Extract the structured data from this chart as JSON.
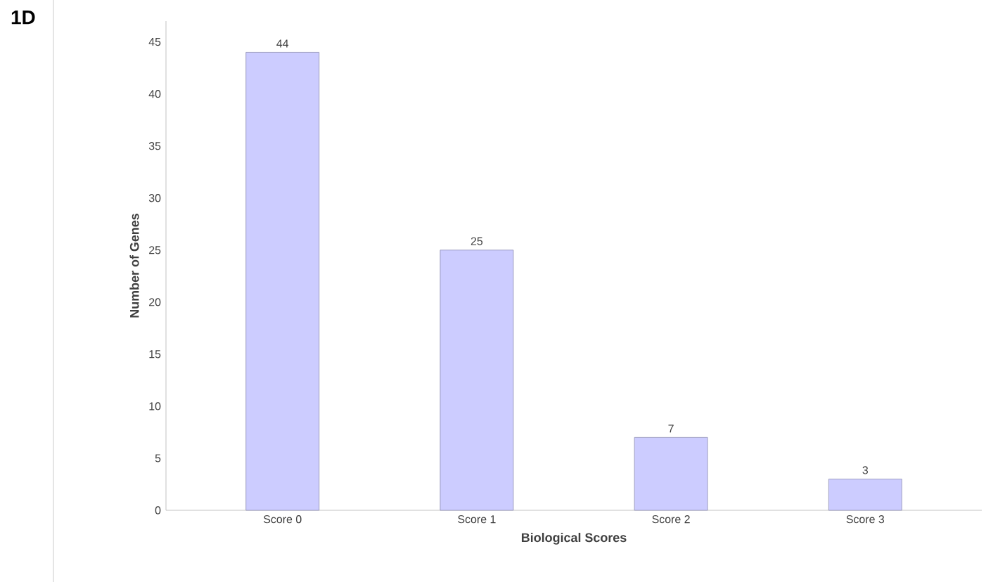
{
  "chart_data": {
    "type": "bar",
    "xlabel": "Biological Scores",
    "ylabel": "Number of Genes",
    "categories": [
      "Score 0",
      "Score 1",
      "Score 2",
      "Score 3"
    ],
    "values": [
      44,
      25,
      7,
      3
    ],
    "color": "#ccccff",
    "ylim": [
      0,
      47
    ],
    "yticks": [
      0,
      5,
      10,
      15,
      20,
      25,
      30,
      35,
      40,
      45
    ],
    "data_labels": true,
    "annotations": [
      "1D"
    ]
  }
}
